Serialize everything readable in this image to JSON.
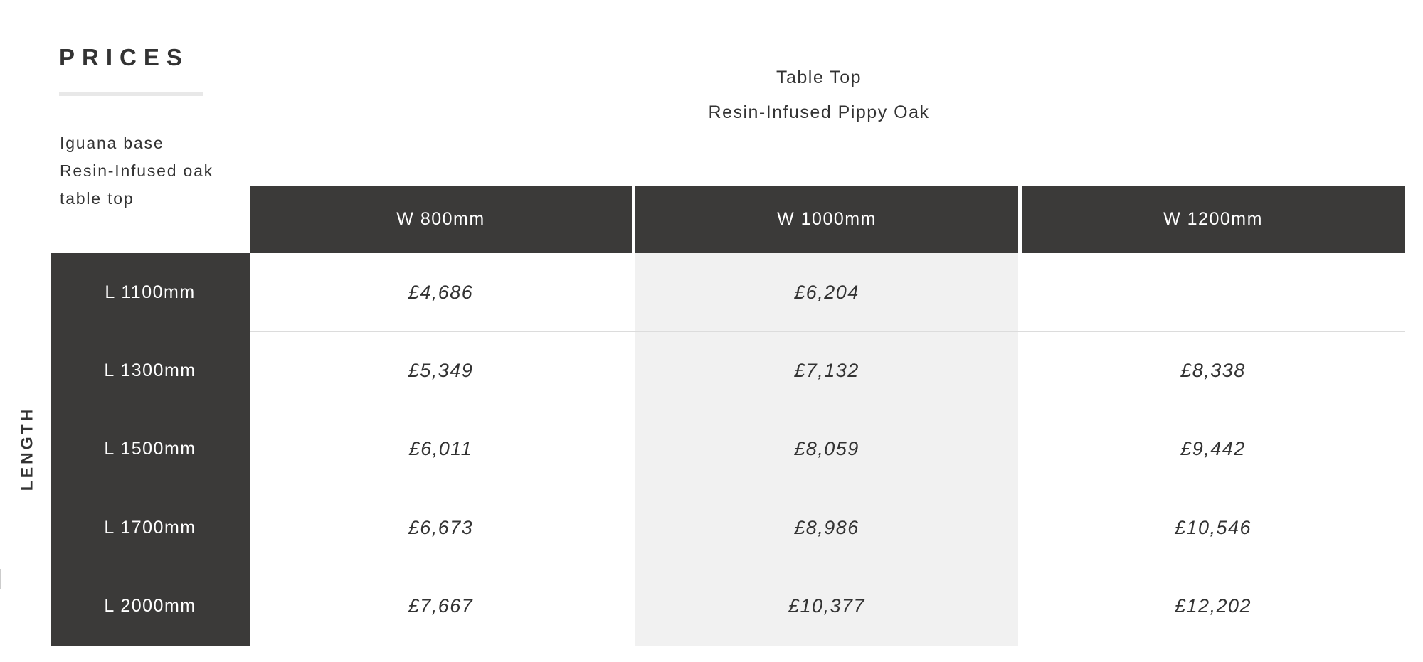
{
  "title": "PRICES",
  "description": [
    "Iguana base",
    "Resin-Infused oak",
    "table top"
  ],
  "table_top": {
    "label": "Table Top",
    "material": "Resin-Infused Pippy Oak"
  },
  "axis_label": "LENGTH",
  "colors": {
    "header_bg": "#3b3a39",
    "header_text": "#ffffff",
    "alt_column_bg": "#f1f1f1"
  },
  "columns": [
    "W 800mm",
    "W 1000mm",
    "W 1200mm"
  ],
  "rows": [
    {
      "label": "L 1100mm",
      "prices": [
        "£4,686",
        "£6,204",
        ""
      ]
    },
    {
      "label": "L 1300mm",
      "prices": [
        "£5,349",
        "£7,132",
        "£8,338"
      ]
    },
    {
      "label": "L 1500mm",
      "prices": [
        "£6,011",
        "£8,059",
        "£9,442"
      ]
    },
    {
      "label": "L 1700mm",
      "prices": [
        "£6,673",
        "£8,986",
        "£10,546"
      ]
    },
    {
      "label": "L 2000mm",
      "prices": [
        "£7,667",
        "£10,377",
        "£12,202"
      ]
    }
  ]
}
